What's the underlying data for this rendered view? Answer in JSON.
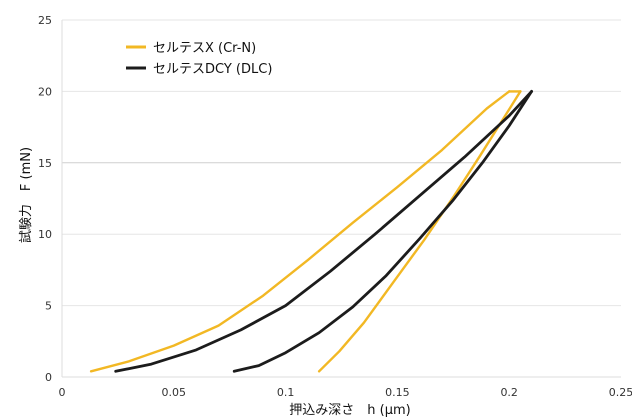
{
  "chart_data": {
    "type": "line",
    "title": "",
    "xlabel": "押込み深さ　h (μm)",
    "ylabel": "試験力　F (mN)",
    "xlim": [
      0,
      0.25
    ],
    "ylim": [
      0,
      25
    ],
    "x_ticks": [
      "0",
      "0.05",
      "0.1",
      "0.15",
      "0.2",
      "0.25"
    ],
    "y_ticks": [
      "0",
      "5",
      "10",
      "15",
      "20",
      "25"
    ],
    "grid": "horizontal",
    "legend_position": "top-left",
    "series": [
      {
        "name": "セルテスX (Cr-N)",
        "color": "#F2B824",
        "segments": [
          {
            "label": "loading",
            "x": [
              0.013,
              0.03,
              0.05,
              0.07,
              0.09,
              0.11,
              0.13,
              0.15,
              0.17,
              0.19,
              0.2
            ],
            "y": [
              0.4,
              1.1,
              2.2,
              3.6,
              5.7,
              8.2,
              10.8,
              13.3,
              15.9,
              18.8,
              20.0
            ]
          },
          {
            "label": "peak",
            "x": [
              0.2,
              0.205
            ],
            "y": [
              20.0,
              20.0
            ]
          },
          {
            "label": "unloading",
            "x": [
              0.205,
              0.197,
              0.187,
              0.175,
              0.162,
              0.148,
              0.135,
              0.124,
              0.115
            ],
            "y": [
              20.0,
              18.0,
              15.5,
              12.6,
              9.6,
              6.6,
              3.8,
              1.8,
              0.4
            ]
          }
        ]
      },
      {
        "name": "セルテスDCY (DLC)",
        "color": "#1c1c1c",
        "segments": [
          {
            "label": "loading",
            "x": [
              0.024,
              0.04,
              0.06,
              0.08,
              0.1,
              0.12,
              0.14,
              0.16,
              0.18,
              0.2,
              0.21
            ],
            "y": [
              0.4,
              0.9,
              1.9,
              3.3,
              5.0,
              7.4,
              10.0,
              12.7,
              15.4,
              18.3,
              20.0
            ]
          },
          {
            "label": "unloading",
            "x": [
              0.21,
              0.2,
              0.188,
              0.175,
              0.16,
              0.145,
              0.13,
              0.115,
              0.1,
              0.088,
              0.077
            ],
            "y": [
              20.0,
              17.6,
              15.0,
              12.4,
              9.7,
              7.1,
              4.9,
              3.1,
              1.7,
              0.8,
              0.4
            ]
          }
        ]
      }
    ]
  }
}
